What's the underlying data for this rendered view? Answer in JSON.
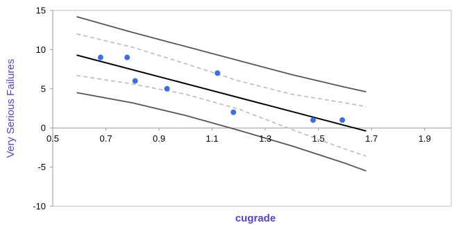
{
  "chart_data": {
    "type": "scatter",
    "title": "",
    "xlabel": "cugrade",
    "ylabel": "Very Serious Failures",
    "xlim": [
      0.5,
      2.0
    ],
    "ylim": [
      -10,
      15
    ],
    "x_ticks": [
      0.5,
      0.7,
      0.9,
      1.1,
      1.3,
      1.5,
      1.7,
      1.9
    ],
    "x_tick_labels": [
      "0.5",
      "0.7",
      "0.9",
      "1.1",
      "1.3",
      "1.5",
      "1.7",
      "1.9"
    ],
    "y_ticks": [
      -10,
      -5,
      0,
      5,
      10,
      15
    ],
    "y_tick_labels": [
      "-10",
      "-5",
      "0",
      "5",
      "10",
      "15"
    ],
    "grid": false,
    "legend": "none",
    "points": {
      "x": [
        0.68,
        0.78,
        0.81,
        0.93,
        1.12,
        1.18,
        1.48,
        1.59
      ],
      "y": [
        9,
        9,
        6,
        5,
        7,
        2,
        1,
        1
      ],
      "color": "#3B6FE8"
    },
    "lines": [
      {
        "style": "solid",
        "color": "#000000",
        "x": [
          0.59,
          1.68
        ],
        "y": [
          9.3,
          -0.4
        ]
      },
      {
        "style": "dashed",
        "color": "#BBBBBB",
        "x": [
          0.59,
          0.8,
          1.0,
          1.2,
          1.4,
          1.6,
          1.68
        ],
        "y": [
          12.0,
          10.3,
          8.2,
          6.0,
          4.3,
          3.2,
          2.7
        ]
      },
      {
        "style": "dashed",
        "color": "#BBBBBB",
        "x": [
          0.59,
          0.8,
          1.0,
          1.2,
          1.4,
          1.6,
          1.68
        ],
        "y": [
          6.7,
          5.6,
          4.3,
          2.4,
          -0.2,
          -2.7,
          -3.6
        ]
      },
      {
        "style": "solid",
        "color": "#555555",
        "x": [
          0.59,
          0.8,
          1.0,
          1.2,
          1.4,
          1.6,
          1.68
        ],
        "y": [
          14.2,
          12.2,
          10.4,
          8.6,
          6.8,
          5.2,
          4.6
        ]
      },
      {
        "style": "solid",
        "color": "#555555",
        "x": [
          0.59,
          0.8,
          1.0,
          1.2,
          1.4,
          1.6,
          1.68
        ],
        "y": [
          4.5,
          3.2,
          1.6,
          -0.3,
          -2.3,
          -4.5,
          -5.5
        ]
      }
    ],
    "axis_title_color": "#5A3FD1"
  }
}
